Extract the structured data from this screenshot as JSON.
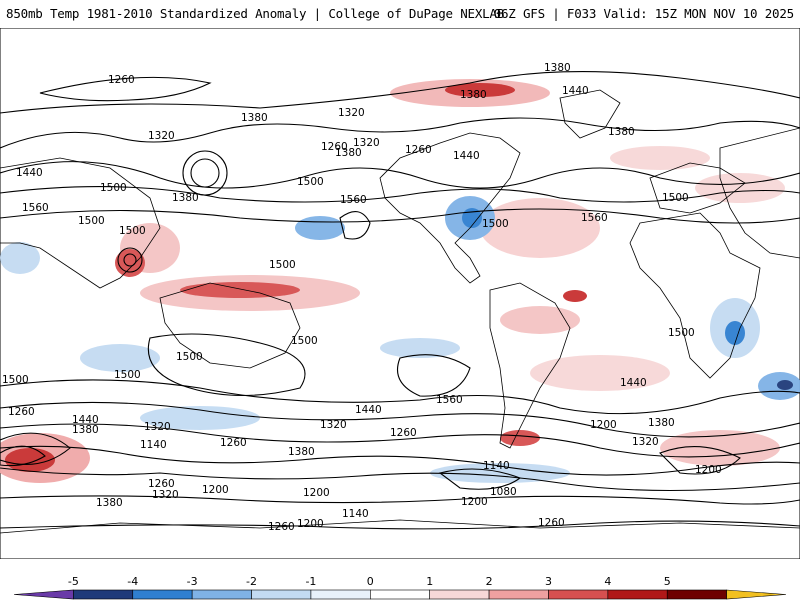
{
  "header": {
    "title_left": "850mb Temp 1981-2010 Standardized Anomaly | College of DuPage NEXLAB",
    "title_right": "06Z GFS | F033 Valid: 15Z MON NOV 10 2025"
  },
  "map": {
    "contour_labels": [
      "1380",
      "1260",
      "1320",
      "1380",
      "1380",
      "1320",
      "1260",
      "1320",
      "1260",
      "1380",
      "1440",
      "1440",
      "1380",
      "1440",
      "1500",
      "1380",
      "1500",
      "1560",
      "1560",
      "1500",
      "1500",
      "1560",
      "1500",
      "1500",
      "1500",
      "1500",
      "1500",
      "1500",
      "1560",
      "1500",
      "1440",
      "1380",
      "1440",
      "1500",
      "1440",
      "1380",
      "1320",
      "1260",
      "1140",
      "1260",
      "1320",
      "1200",
      "1380",
      "1260",
      "1320",
      "1200",
      "1380",
      "1140",
      "1260",
      "1200",
      "1080",
      "1320",
      "1200",
      "1140",
      "1260",
      "1200",
      "1260",
      "1200"
    ],
    "colors": {
      "land_outline": "#000000",
      "contour": "#000000"
    }
  },
  "colorbar": {
    "ticks": [
      "-5",
      "-4",
      "-3",
      "-2",
      "-1",
      "0",
      "1",
      "2",
      "3",
      "4",
      "5"
    ],
    "colors": [
      "#6a3aa8",
      "#1f3a7a",
      "#2f7fd0",
      "#7fb2e6",
      "#c3dbf2",
      "#e8f1fa",
      "#ffffff",
      "#f7d8d8",
      "#eea0a0",
      "#d65050",
      "#b01818",
      "#6e0000",
      "#f2c020"
    ]
  }
}
